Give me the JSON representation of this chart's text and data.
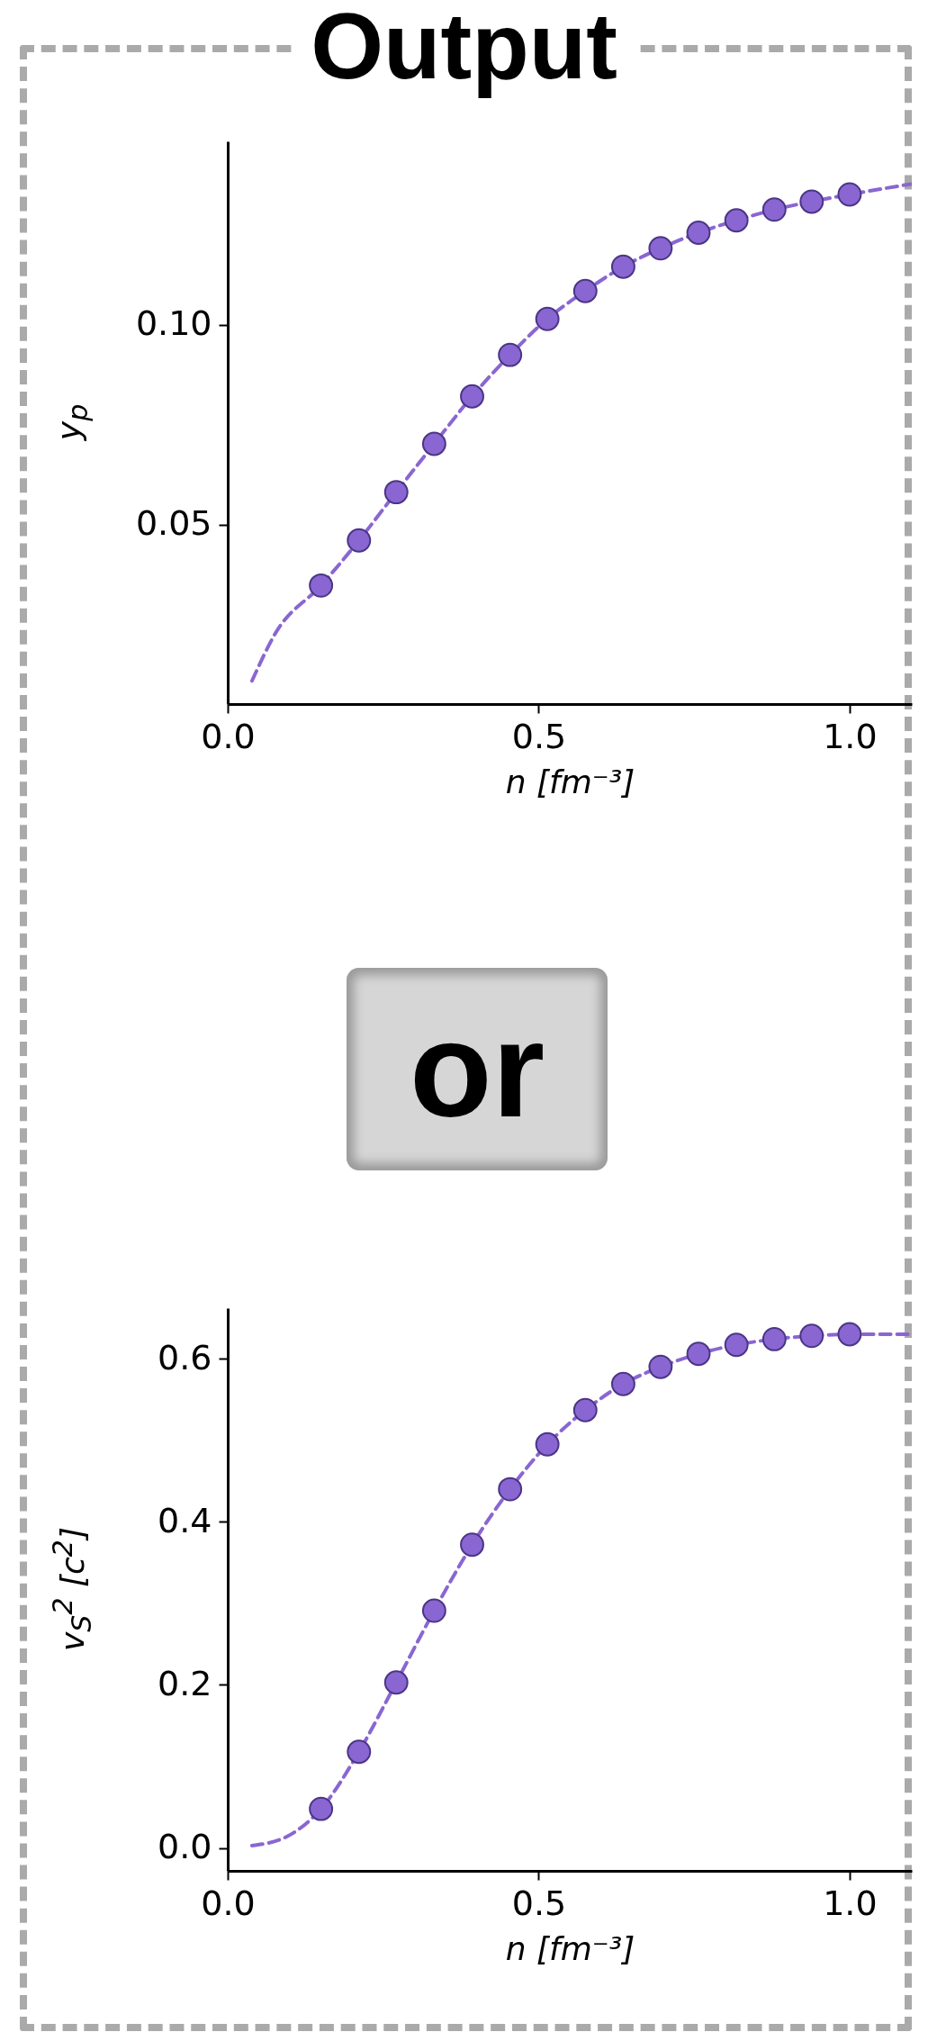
{
  "chart_data": [
    {
      "type": "scatter",
      "title": "Output",
      "xlabel": "n [fm⁻³]",
      "ylabel": "y$_{p}$",
      "xlim": [
        0,
        1.1
      ],
      "xticks": [
        {
          "value": 0,
          "label": "0.0"
        },
        {
          "value": 0.5,
          "label": "0.5"
        },
        {
          "value": 1,
          "label": "1.0"
        }
      ],
      "ylim": [
        0.005,
        0.146
      ],
      "yticks": [
        0.05,
        {
          "value": 0.1,
          "label": "0.10"
        }
      ],
      "series": [
        {
          "type": "line",
          "line_style": "dashed",
          "color": "#8a66d2",
          "x": [
            0.039,
            0.077,
            0.15,
            0.211,
            0.271,
            0.332,
            0.393,
            0.454,
            0.514,
            0.575,
            0.636,
            0.696,
            0.757,
            0.818,
            0.879,
            0.939,
            1.0,
            1.099
          ],
          "values": [
            0.0108,
            0.0228,
            0.0347,
            0.046,
            0.0581,
            0.0702,
            0.0821,
            0.0925,
            0.1015,
            0.1085,
            0.1146,
            0.1192,
            0.1231,
            0.1262,
            0.1289,
            0.1309,
            0.1327,
            0.1353
          ]
        },
        {
          "type": "scatter",
          "marker": "circle",
          "color": "#8a66d2",
          "x": [
            0.15,
            0.211,
            0.271,
            0.332,
            0.393,
            0.454,
            0.514,
            0.575,
            0.636,
            0.696,
            0.757,
            0.818,
            0.879,
            0.939,
            1.0
          ],
          "values": [
            0.0347,
            0.046,
            0.0581,
            0.0702,
            0.0821,
            0.0925,
            0.1015,
            0.1085,
            0.1146,
            0.1192,
            0.1231,
            0.1262,
            0.1289,
            0.1309,
            0.1327
          ]
        }
      ]
    },
    {
      "type": "scatter",
      "title": "or",
      "xlabel": "n [fm⁻³]",
      "ylabel": "v$_{S}$$^{2}$ [c$^{2}$]",
      "xlim": [
        0,
        1.1
      ],
      "xticks": [
        {
          "value": 0,
          "label": "0.0"
        },
        {
          "value": 0.5,
          "label": "0.5"
        },
        {
          "value": 1,
          "label": "1.0"
        }
      ],
      "ylim": [
        -0.028,
        0.662
      ],
      "yticks": [
        {
          "value": 0,
          "label": "0.0"
        },
        0.2,
        0.4,
        0.6
      ],
      "series": [
        {
          "type": "line",
          "line_style": "dashed",
          "color": "#8a66d2",
          "x": [
            0.039,
            0.095,
            0.15,
            0.211,
            0.271,
            0.332,
            0.393,
            0.454,
            0.514,
            0.575,
            0.636,
            0.696,
            0.757,
            0.818,
            0.879,
            0.939,
            1.0,
            1.1
          ],
          "values": [
            0.003,
            0.014,
            0.048,
            0.118,
            0.203,
            0.291,
            0.372,
            0.44,
            0.495,
            0.537,
            0.569,
            0.59,
            0.606,
            0.617,
            0.624,
            0.628,
            0.63,
            0.63
          ]
        },
        {
          "type": "scatter",
          "marker": "circle",
          "color": "#8a66d2",
          "x": [
            0.15,
            0.211,
            0.271,
            0.332,
            0.393,
            0.454,
            0.514,
            0.575,
            0.636,
            0.696,
            0.757,
            0.818,
            0.879,
            0.939,
            1.0
          ],
          "values": [
            0.048,
            0.118,
            0.203,
            0.291,
            0.372,
            0.44,
            0.495,
            0.537,
            0.569,
            0.59,
            0.606,
            0.617,
            0.624,
            0.628,
            0.63
          ]
        }
      ]
    }
  ]
}
